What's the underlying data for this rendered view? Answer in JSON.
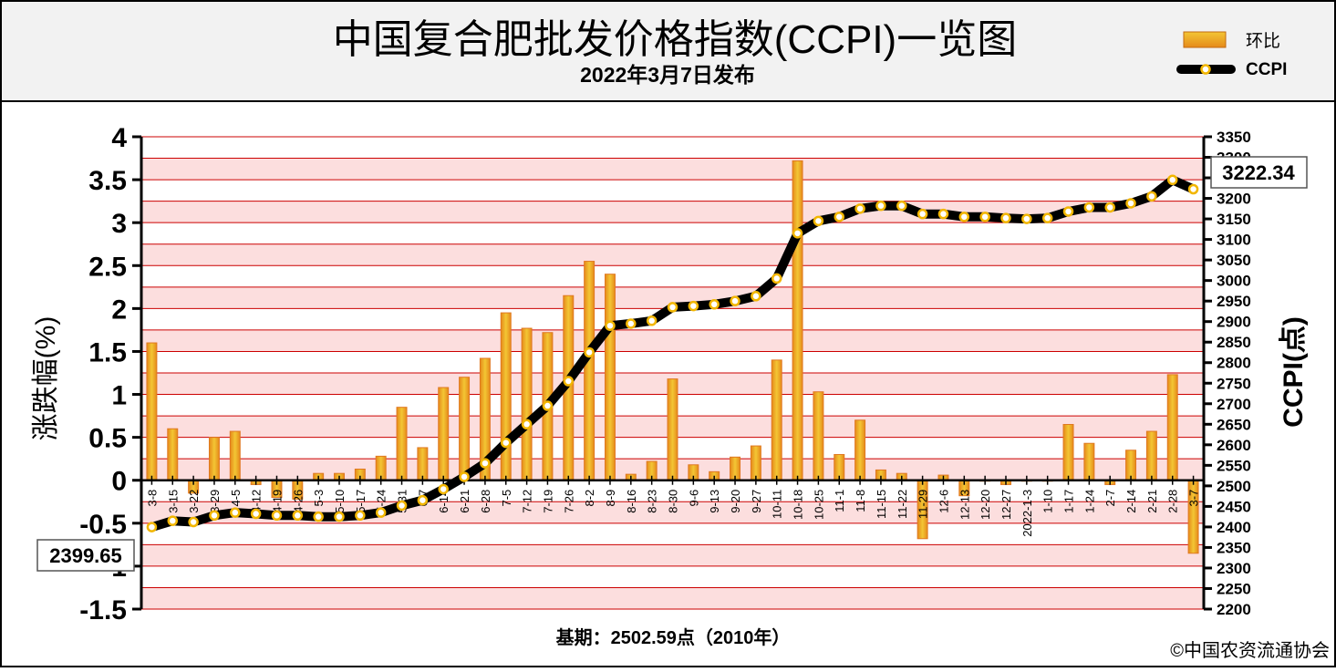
{
  "header": {
    "title": "中国复合肥批发价格指数(CCPI)一览图",
    "subtitle": "2022年3月7日发布"
  },
  "footer": {
    "base_period": "基期：2502.59点（2010年）",
    "copyright": "©中国农资流通协会"
  },
  "callouts": {
    "start_value": "2399.65",
    "end_value": "3222.34"
  },
  "colors": {
    "bar_fill": "#d4a017",
    "bar_stroke": "#e07820",
    "line": "#000000",
    "marker": "#ffffff",
    "marker_stroke": "#f2b600",
    "band_fill": "#fcdede",
    "grid": "#cc0000"
  },
  "chart_data": {
    "type": "bar+line",
    "legend_position": "top-right",
    "grid": true,
    "categories": [
      "3-8",
      "3-15",
      "3-22",
      "3-29",
      "4-5",
      "4-12",
      "4-19",
      "4-26",
      "5-3",
      "5-10",
      "5-17",
      "5-24",
      "5-31",
      "6-7",
      "6-14",
      "6-21",
      "6-28",
      "7-5",
      "7-12",
      "7-19",
      "7-26",
      "8-2",
      "8-9",
      "8-16",
      "8-23",
      "8-30",
      "9-6",
      "9-13",
      "9-20",
      "9-27",
      "10-11",
      "10-18",
      "10-25",
      "11-1",
      "11-8",
      "11-15",
      "11-22",
      "11-29",
      "12-6",
      "12-13",
      "12-20",
      "12-27",
      "2022-1-3",
      "1-10",
      "1-17",
      "1-24",
      "2-7",
      "2-14",
      "2-21",
      "2-28",
      "3-7"
    ],
    "series": [
      {
        "name": "环比",
        "type": "bar",
        "axis": "left",
        "values": [
          1.6,
          0.6,
          -0.15,
          0.5,
          0.57,
          -0.05,
          -0.2,
          -0.22,
          0.08,
          0.08,
          0.13,
          0.28,
          0.85,
          0.38,
          1.08,
          1.2,
          1.42,
          1.95,
          1.77,
          1.72,
          2.15,
          2.55,
          2.4,
          0.07,
          0.22,
          1.18,
          0.18,
          0.1,
          0.27,
          0.4,
          1.4,
          3.72,
          1.03,
          0.3,
          0.7,
          0.12,
          0.08,
          -0.68,
          0.06,
          -0.18,
          0.0,
          -0.05,
          0.0,
          0.0,
          0.65,
          0.43,
          -0.05,
          0.35,
          0.57,
          1.23,
          -0.85
        ]
      },
      {
        "name": "CCPI",
        "type": "line",
        "axis": "right",
        "values": [
          2399.65,
          2415,
          2412,
          2428,
          2435,
          2432,
          2428,
          2428,
          2425,
          2425,
          2428,
          2435,
          2452,
          2465,
          2492,
          2522,
          2555,
          2605,
          2650,
          2695,
          2755,
          2825,
          2890,
          2895,
          2902,
          2935,
          2938,
          2942,
          2950,
          2962,
          3005,
          3115,
          3145,
          3155,
          3175,
          3182,
          3182,
          3162,
          3162,
          3155,
          3155,
          3152,
          3150,
          3152,
          3168,
          3178,
          3178,
          3188,
          3205,
          3245,
          3222.34
        ]
      }
    ],
    "y_left": {
      "label": "涨跌幅(%)",
      "min": -1.5,
      "max": 4,
      "step": 0.5,
      "tick_labels": [
        "-1.5",
        "-1",
        "-0.5",
        "0",
        "0.5",
        "1",
        "1.5",
        "2",
        "2.5",
        "3",
        "3.5",
        "4"
      ]
    },
    "y_right": {
      "label": "CCPI(点)",
      "min": 2200,
      "max": 3350,
      "step": 50
    }
  }
}
